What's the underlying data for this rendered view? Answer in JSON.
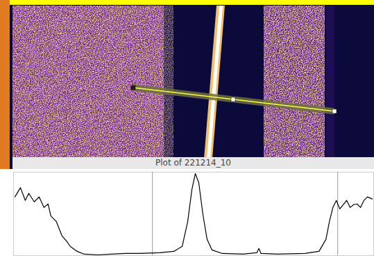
{
  "chart_data": {
    "type": "line",
    "title": "Plot of 221214_10",
    "x": [
      2,
      10,
      17,
      22,
      30,
      37,
      44,
      50,
      54,
      62,
      70,
      77,
      82,
      92,
      102,
      122,
      142,
      162,
      182,
      212,
      232,
      244,
      252,
      258,
      263,
      268,
      274,
      280,
      287,
      302,
      332,
      352,
      355,
      358,
      382,
      422,
      442,
      452,
      457,
      462,
      467,
      472,
      477,
      482,
      487,
      492,
      497,
      502,
      507,
      512,
      519
    ],
    "values": [
      83,
      96,
      78,
      88,
      76,
      83,
      68,
      73,
      56,
      48,
      28,
      20,
      13,
      6,
      2,
      1,
      2,
      3,
      3,
      4,
      6,
      13,
      48,
      93,
      116,
      103,
      58,
      23,
      8,
      3,
      2,
      4,
      10,
      3,
      2,
      3,
      6,
      23,
      48,
      68,
      78,
      66,
      72,
      78,
      68,
      72,
      73,
      68,
      78,
      83,
      80
    ],
    "color": "#000000",
    "xlim": [
      0,
      521
    ],
    "ylim": [
      0,
      118
    ],
    "xticks": [
      201,
      469
    ],
    "grid": true,
    "tick_labels": false
  }
}
